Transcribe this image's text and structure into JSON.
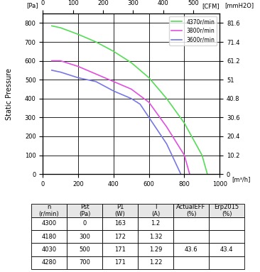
{
  "chart_data": {
    "type": "line",
    "y_label": "Static Pressure",
    "y_unit": "[Pa]",
    "y2_label": "[mmH2O]",
    "x_label": "[m³/h]",
    "x2_label": "[CFM]",
    "xlim": [
      0,
      1000
    ],
    "xticks": [
      0,
      200,
      400,
      600,
      800,
      1000
    ],
    "ylim": [
      0,
      850
    ],
    "yticks": [
      0,
      100,
      200,
      300,
      400,
      500,
      600,
      700,
      800
    ],
    "x2lim": [
      0,
      588.6
    ],
    "x2ticks": [
      0,
      100,
      200,
      300,
      400,
      500
    ],
    "y2lim": [
      0,
      86.7
    ],
    "y2ticks": [
      0,
      10.2,
      20.4,
      30.6,
      40.8,
      51,
      61.2,
      71.4,
      81.6
    ],
    "grid": true,
    "legend": "upper right",
    "series": [
      {
        "name": "4370r/min",
        "color": "#55dd55",
        "x": [
          50,
          100,
          200,
          300,
          400,
          500,
          600,
          700,
          800,
          900,
          930
        ],
        "values": [
          785,
          775,
          740,
          700,
          650,
          590,
          510,
          400,
          270,
          100,
          0
        ]
      },
      {
        "name": "3800r/min",
        "color": "#e050e0",
        "x": [
          50,
          100,
          200,
          300,
          400,
          500,
          600,
          700,
          800,
          830
        ],
        "values": [
          600,
          600,
          570,
          530,
          490,
          450,
          380,
          250,
          100,
          0
        ]
      },
      {
        "name": "3600r/min",
        "color": "#7777e6",
        "x": [
          50,
          100,
          200,
          300,
          400,
          500,
          550,
          600,
          700,
          780
        ],
        "values": [
          550,
          540,
          510,
          490,
          440,
          400,
          370,
          300,
          160,
          0
        ]
      }
    ]
  },
  "table": {
    "header": [
      "n\n(r/min)",
      "Pst\n(Pa)",
      "P1\n(W)",
      "I\n(A)",
      "ActualEFF\n(%)",
      "Erp2015\n(%)"
    ],
    "rows": [
      [
        4300,
        0,
        163,
        1.2,
        null,
        null
      ],
      [
        4180,
        300,
        172,
        1.32,
        null,
        null
      ],
      [
        4030,
        500,
        171,
        1.29,
        43.6,
        43.4
      ],
      [
        4280,
        700,
        171,
        1.22,
        null,
        null
      ]
    ]
  }
}
